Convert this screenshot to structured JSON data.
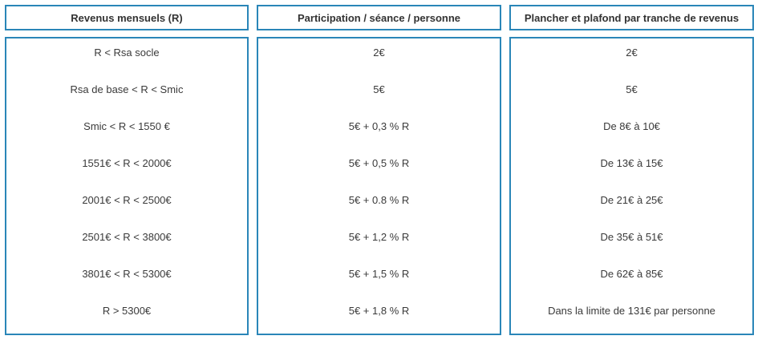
{
  "table": {
    "headers": [
      "Revenus mensuels (R)",
      "Participation / séance / personne",
      "Plancher et plafond par tranche de revenus"
    ],
    "columns": [
      [
        "R < Rsa socle",
        "Rsa de base < R < Smic",
        "Smic < R < 1550 €",
        "1551€ < R < 2000€",
        "2001€ < R < 2500€",
        "2501€ < R < 3800€",
        "3801€ < R < 5300€",
        "R > 5300€"
      ],
      [
        "2€",
        "5€",
        "5€ + 0,3 % R",
        "5€ + 0,5 % R",
        "5€ + 0.8 % R",
        "5€ + 1,2 % R",
        "5€ + 1,5 % R",
        "5€ + 1,8 % R"
      ],
      [
        "2€",
        "5€",
        "De 8€ à 10€",
        "De 13€ à 15€",
        "De 21€ à 25€",
        "De 35€ à 51€",
        "De 62€ à 85€",
        "Dans la limite de 131€ par personne"
      ]
    ]
  },
  "colors": {
    "border": "#2a86b8",
    "text": "#3a3a3a"
  }
}
